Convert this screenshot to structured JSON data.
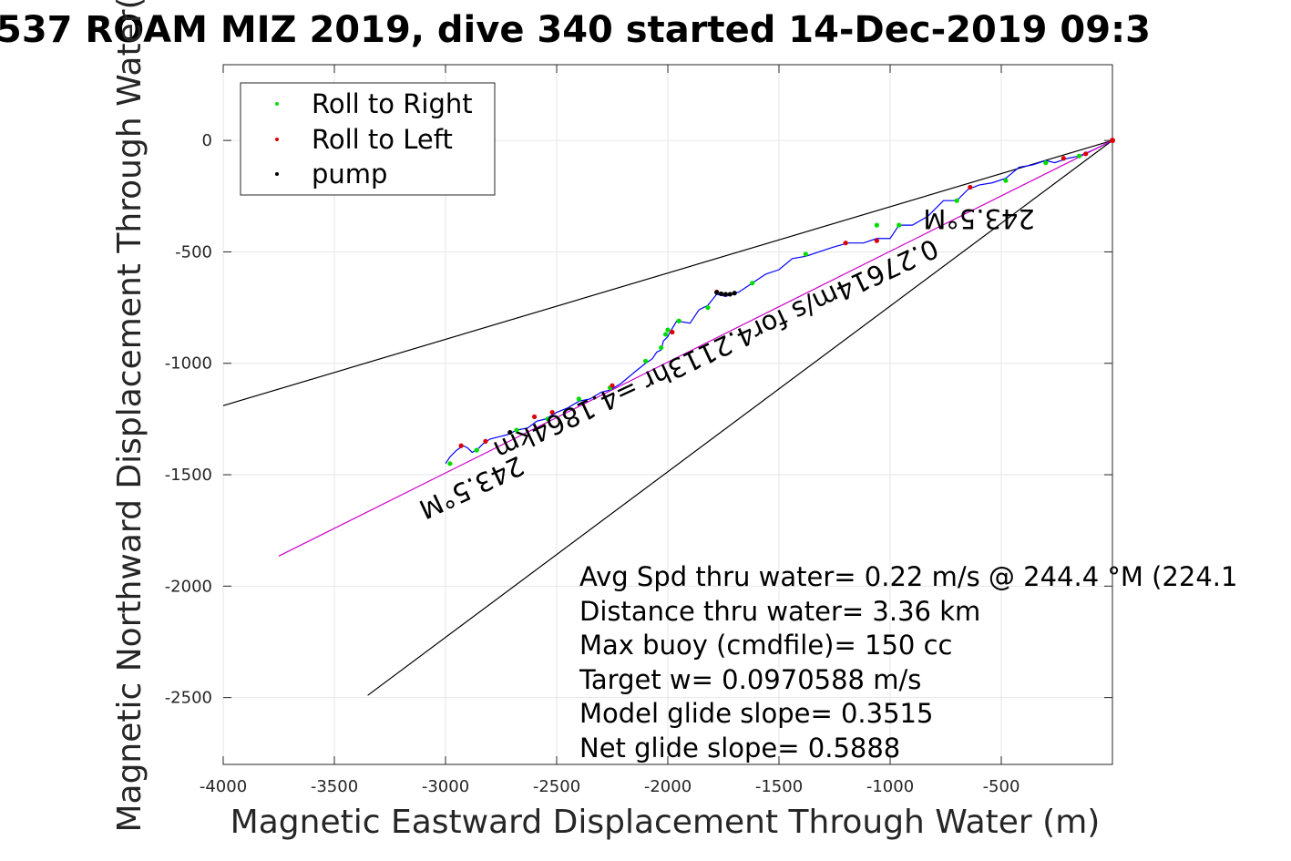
{
  "chart_data": {
    "type": "line",
    "title": "537 ROAM MIZ 2019, dive 340 started 14-Dec-2019 09:3",
    "xlabel": "Magnetic Eastward Displacement Through Water (m)",
    "ylabel": "Magnetic Northward Displacement Through Water(",
    "xlim": [
      -4000,
      0
    ],
    "ylim": [
      -2800,
      340
    ],
    "xticks": [
      -4000,
      -3500,
      -3000,
      -2500,
      -2000,
      -1500,
      -1000,
      -500
    ],
    "xtick_labels": [
      "-4000",
      "-3500",
      "-3000",
      "-2500",
      "-2000",
      "-1500",
      "-1000",
      "-500"
    ],
    "yticks": [
      0,
      -500,
      -1000,
      -1500,
      -2000,
      -2500
    ],
    "ytick_labels": [
      "0",
      "-500",
      "-1000",
      "-1500",
      "-2000",
      "-2500"
    ],
    "grid": true,
    "legend": {
      "position": "top-left",
      "entries": [
        {
          "label": "Roll to Right",
          "color": "#00dd00"
        },
        {
          "label": "Roll to Left",
          "color": "#dd0000"
        },
        {
          "label": "pump",
          "color": "#000000"
        }
      ]
    },
    "series": [
      {
        "name": "track",
        "color": "#0000ff",
        "x": [
          0,
          -80,
          -150,
          -200,
          -260,
          -300,
          -360,
          -420,
          -480,
          -540,
          -600,
          -650,
          -700,
          -760,
          -830,
          -900,
          -960,
          -1000,
          -1060,
          -1120,
          -1190,
          -1260,
          -1320,
          -1380,
          -1440,
          -1500,
          -1560,
          -1620,
          -1680,
          -1740,
          -1780,
          -1820,
          -1860,
          -1900,
          -1960,
          -1990,
          -2000,
          -2020,
          -2030,
          -2050,
          -2070,
          -2100,
          -2150,
          -2210,
          -2260,
          -2300,
          -2350,
          -2400,
          -2450,
          -2500,
          -2550,
          -2590,
          -2630,
          -2680,
          -2720,
          -2760,
          -2800,
          -2830,
          -2850,
          -2880,
          -2900,
          -2920,
          -2950,
          -2980,
          -3000
        ],
        "y": [
          0,
          -40,
          -70,
          -80,
          -100,
          -90,
          -110,
          -120,
          -170,
          -190,
          -200,
          -220,
          -270,
          -270,
          -340,
          -380,
          -380,
          -440,
          -440,
          -460,
          -460,
          -480,
          -500,
          -520,
          -530,
          -580,
          -600,
          -640,
          -680,
          -700,
          -690,
          -740,
          -760,
          -820,
          -810,
          -860,
          -880,
          -900,
          -940,
          -950,
          -980,
          -1000,
          -1040,
          -1090,
          -1120,
          -1130,
          -1160,
          -1170,
          -1200,
          -1220,
          -1250,
          -1260,
          -1290,
          -1300,
          -1320,
          -1330,
          -1340,
          -1360,
          -1380,
          -1400,
          -1380,
          -1370,
          -1390,
          -1420,
          -1450
        ]
      },
      {
        "name": "depth-averaged track",
        "color": "#cc00cc",
        "x": [
          0,
          -3750
        ],
        "y": [
          0,
          -1865
        ]
      }
    ],
    "events": {
      "roll_right": {
        "x": [
          -150,
          -300,
          -480,
          -700,
          -960,
          -1060,
          -1380,
          -1620,
          -1820,
          -1950,
          -2000,
          -2010,
          -2030,
          -2100,
          -2260,
          -2400,
          -2540,
          -2680,
          -2860,
          -2980
        ],
        "y": [
          -70,
          -100,
          -180,
          -270,
          -380,
          -380,
          -510,
          -640,
          -750,
          -810,
          -850,
          -870,
          -930,
          -990,
          -1110,
          -1160,
          -1250,
          -1300,
          -1390,
          -1450
        ]
      },
      "roll_left": {
        "x": [
          -120,
          -220,
          -640,
          -1060,
          -1200,
          -1780,
          -1980,
          -2250,
          -2520,
          -2600,
          -2820,
          -2930
        ],
        "y": [
          -60,
          -80,
          -210,
          -450,
          -460,
          -680,
          -860,
          -1100,
          -1220,
          -1240,
          -1350,
          -1370
        ]
      },
      "pump": {
        "x": [
          -1700,
          -1720,
          -1740,
          -1760,
          -1780,
          -2710
        ],
        "y": [
          -685,
          -690,
          -690,
          -688,
          -682,
          -1310
        ]
      }
    },
    "reference_lines": [
      {
        "x": [
          0,
          -4000
        ],
        "y": [
          0,
          -1190
        ],
        "color": "#000000"
      },
      {
        "x": [
          0,
          -3350
        ],
        "y": [
          0,
          -2490
        ],
        "color": "#000000"
      }
    ],
    "annotations": [
      {
        "text": "243.5°M",
        "x": -600,
        "y": -310,
        "rotation_deg": 180
      },
      {
        "text": "0.27614m/s for4.2113hr =4.1864km",
        "x": -1800,
        "y": -900,
        "rotation_deg": 155
      },
      {
        "text": "243.5°M",
        "x": -2900,
        "y": -1520,
        "rotation_deg": 155
      }
    ],
    "stats": [
      "Avg Spd thru water=  0.22 m/s @ 244.4 °M (224.1",
      "Distance thru water=  3.36 km",
      "Max buoy (cmdfile)= 150 cc",
      "Target w= 0.0970588 m/s",
      "Model glide slope= 0.3515",
      "Net glide slope= 0.5888"
    ]
  }
}
